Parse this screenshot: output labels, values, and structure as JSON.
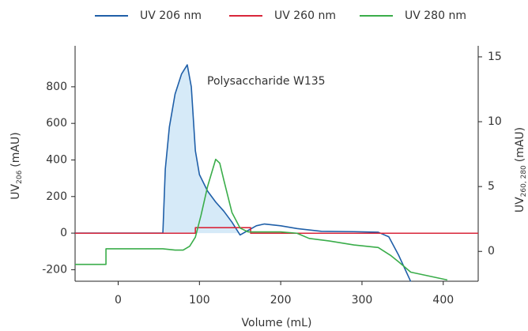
{
  "chart_data": {
    "type": "line",
    "annotation": "Polysaccharide W135",
    "x_label": "Volume (mL)",
    "y_label": {
      "main": "UV",
      "sub": "206",
      "unit": "(mAU)"
    },
    "y2_label": {
      "main": "UV",
      "sub": "260, 280",
      "unit": "(mAU)"
    },
    "xlim": [
      -53,
      443
    ],
    "xticks": [
      0,
      100,
      200,
      300,
      400
    ],
    "ylim": [
      -263,
      1024
    ],
    "yticks": [
      -200,
      0,
      200,
      400,
      600,
      800
    ],
    "y2lim": [
      -2.3,
      15.85
    ],
    "y2ticks": [
      0,
      5,
      10,
      15
    ],
    "legend": "top",
    "shade_color": "#d6eaf8",
    "series": [
      {
        "name": "UV 206 nm",
        "color": "#1f5fa8",
        "x": [
          -53,
          55,
          58,
          63,
          70,
          78,
          85,
          90,
          95,
          100,
          110,
          120,
          130,
          140,
          150,
          160,
          170,
          180,
          200,
          220,
          250,
          290,
          320,
          333,
          345,
          360
        ],
        "values": [
          0,
          0,
          350,
          580,
          760,
          870,
          920,
          800,
          450,
          320,
          230,
          170,
          120,
          60,
          -10,
          15,
          40,
          50,
          40,
          25,
          10,
          8,
          5,
          -20,
          -120,
          -265
        ]
      },
      {
        "name": "UV 260 nm",
        "color": "#d9263a",
        "axis": "y2",
        "x": [
          -53,
          95,
          95,
          163,
          163,
          443
        ],
        "values": [
          1.4,
          1.4,
          1.83,
          1.83,
          1.4,
          1.4
        ]
      },
      {
        "name": "UV 280 nm",
        "color": "#3aad4a",
        "axis": "y2",
        "x": [
          -53,
          -15,
          -15,
          55,
          70,
          80,
          88,
          95,
          102,
          110,
          120,
          125,
          130,
          140,
          150,
          160,
          170,
          200,
          220,
          235,
          260,
          290,
          320,
          335,
          345,
          360,
          405
        ],
        "values": [
          -1.0,
          -1.0,
          0.2,
          0.2,
          0.1,
          0.1,
          0.4,
          1.1,
          2.8,
          5,
          7.1,
          6.8,
          5.5,
          3.0,
          1.8,
          1.5,
          1.5,
          1.5,
          1.4,
          1.0,
          0.8,
          0.5,
          0.3,
          -0.3,
          -0.8,
          -1.6,
          -2.2
        ]
      }
    ]
  }
}
